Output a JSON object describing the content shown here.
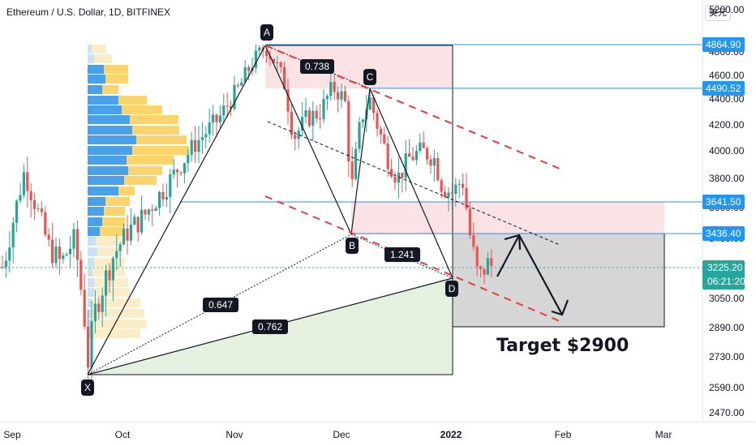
{
  "header": {
    "title": "Ethereum / U.S. Dollar, 1D, BITFINEX",
    "currency_button": "美元",
    "top_price_cut": "5200.00"
  },
  "chart_data": {
    "type": "candlestick",
    "symbol": "Ethereum / U.S. Dollar",
    "interval": "1D",
    "exchange": "BITFINEX",
    "y_ticks": [
      4800.0,
      4600.0,
      4400.0,
      4200.0,
      4000.0,
      3800.0,
      3600.0,
      3400.0,
      3225.2,
      3050.0,
      2890.0,
      2730.0,
      2590.0,
      2470.0
    ],
    "y_tick_labels": [
      "4800.00",
      "4600.00",
      "4400.00",
      "4200.00",
      "4000.00",
      "3800.00",
      "3600.00",
      "3400.00",
      "3225.20",
      "3050.00",
      "2890.00",
      "2730.00",
      "2590.00",
      "2470.00"
    ],
    "x_tick_labels": [
      "Sep",
      "Oct",
      "Nov",
      "Dec",
      "2022",
      "Feb",
      "Mar"
    ],
    "price_tags": [
      {
        "label": "4864.90",
        "value": 4864.9,
        "color": "#2196f3"
      },
      {
        "label": "4490.52",
        "value": 4490.52,
        "color": "#2196f3"
      },
      {
        "label": "3641.50",
        "value": 3641.5,
        "color": "#2196f3"
      },
      {
        "label": "3436.40",
        "value": 3436.4,
        "color": "#2196f3"
      }
    ],
    "current_price": {
      "value": "3225.20",
      "countdown": "06:21:20",
      "color": "#26a69a"
    },
    "pattern_points": [
      {
        "label": "X",
        "date": "2021-09-21",
        "price": 2700
      },
      {
        "label": "A",
        "date": "2021-11-10",
        "price": 4864.9
      },
      {
        "label": "B",
        "date": "2021-12-04",
        "price": 3436.4
      },
      {
        "label": "C",
        "date": "2021-12-16",
        "price": 4490.52
      },
      {
        "label": "D",
        "date": "2022-01-01",
        "price": 3180
      }
    ],
    "ratios": [
      "0.738",
      "1.241",
      "0.647",
      "0.762"
    ],
    "annotation": "Target $2900",
    "projection": {
      "bounce_to": 3436.4,
      "target": 2900
    }
  },
  "colors": {
    "up": "#26a69a",
    "down": "#ef5350",
    "line": "#2196f3",
    "zone_red": "#f9d9dc",
    "zone_green": "#e6f3e2",
    "zone_gray": "#d9d9d9",
    "dash": "#e8393f"
  }
}
